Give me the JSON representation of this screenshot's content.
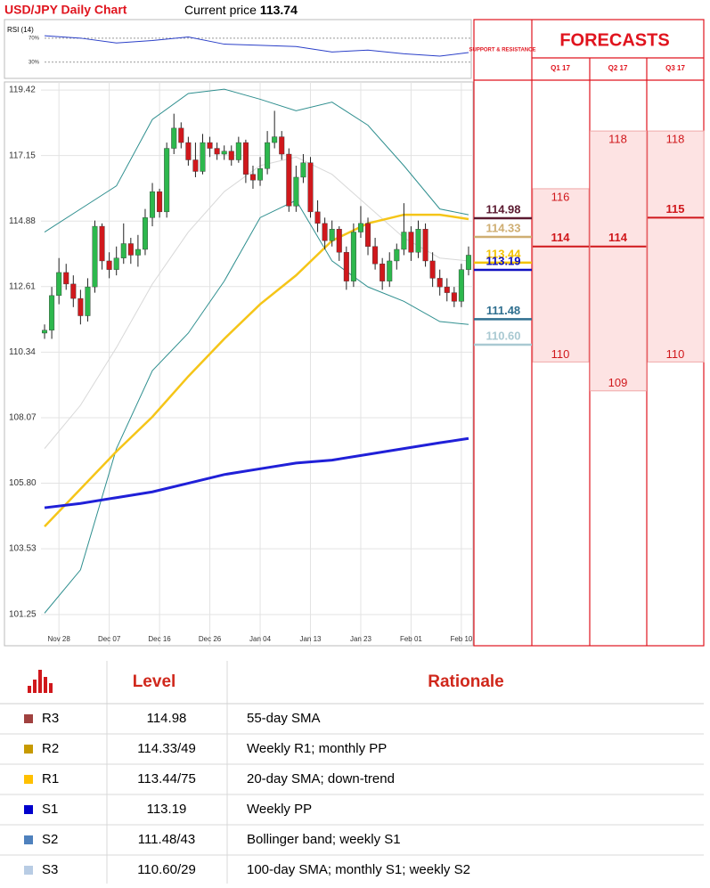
{
  "header": {
    "title": "USD/JPY Daily Chart",
    "current_price_label": "Current price",
    "current_price": 113.74
  },
  "chart_data": [
    {
      "type": "candlestick",
      "categories": [
        null,
        null,
        "Nov 28",
        null,
        null,
        null,
        null,
        null,
        null,
        "Dec 07",
        null,
        null,
        null,
        null,
        null,
        null,
        "Dec 16",
        null,
        null,
        null,
        null,
        null,
        null,
        "Dec 26",
        null,
        null,
        null,
        null,
        null,
        null,
        "Jan 04",
        null,
        null,
        null,
        null,
        null,
        null,
        "Jan 13",
        null,
        null,
        null,
        null,
        null,
        null,
        "Jan 23",
        null,
        null,
        null,
        null,
        null,
        null,
        "Feb 01",
        null,
        null,
        null,
        null,
        null,
        null,
        "Feb 10",
        null
      ],
      "open": [
        111.0,
        111.1,
        112.3,
        113.1,
        112.7,
        112.2,
        111.6,
        112.6,
        114.7,
        113.5,
        113.2,
        113.6,
        114.1,
        113.7,
        113.9,
        115.0,
        115.9,
        115.2,
        117.4,
        118.1,
        117.6,
        117.0,
        116.6,
        117.6,
        117.4,
        117.2,
        117.3,
        117.0,
        117.6,
        116.5,
        116.3,
        116.7,
        117.6,
        117.8,
        117.2,
        115.4,
        116.4,
        116.9,
        115.2,
        114.8,
        114.2,
        114.6,
        113.8,
        112.8,
        114.5,
        114.8,
        114.0,
        113.4,
        112.8,
        113.5,
        113.9,
        114.5,
        113.8,
        114.6,
        113.5,
        112.9,
        112.6,
        112.4,
        112.1,
        113.2
      ],
      "high": [
        111.3,
        112.6,
        113.6,
        113.4,
        113.0,
        112.5,
        112.9,
        114.9,
        114.8,
        113.8,
        114.0,
        114.8,
        114.3,
        114.4,
        115.3,
        116.2,
        116.0,
        117.6,
        118.6,
        118.3,
        117.8,
        117.6,
        117.9,
        117.8,
        117.6,
        117.5,
        117.5,
        117.8,
        117.7,
        116.8,
        117.1,
        118.0,
        118.7,
        118.0,
        117.4,
        116.8,
        117.2,
        117.1,
        115.6,
        115.0,
        114.9,
        114.7,
        114.0,
        114.8,
        115.4,
        115.0,
        114.3,
        113.6,
        113.8,
        114.1,
        115.5,
        114.7,
        114.9,
        114.8,
        113.8,
        113.2,
        112.9,
        112.6,
        113.4,
        114.0
      ],
      "low": [
        110.8,
        110.8,
        112.0,
        112.5,
        111.9,
        111.3,
        111.4,
        112.4,
        113.2,
        112.9,
        113.0,
        113.4,
        113.4,
        113.3,
        113.7,
        114.7,
        115.0,
        115.0,
        117.2,
        117.4,
        116.8,
        116.4,
        116.5,
        117.1,
        117.0,
        117.0,
        116.8,
        116.9,
        116.2,
        116.0,
        116.1,
        116.5,
        117.4,
        117.0,
        115.2,
        115.2,
        116.2,
        115.0,
        114.5,
        113.9,
        114.0,
        113.5,
        112.5,
        112.6,
        114.3,
        113.7,
        113.2,
        112.5,
        112.6,
        113.2,
        113.7,
        113.5,
        113.6,
        113.3,
        112.6,
        112.3,
        112.1,
        111.9,
        111.9,
        113.0
      ],
      "close": [
        111.1,
        112.3,
        113.1,
        112.7,
        112.2,
        111.6,
        112.6,
        114.7,
        113.5,
        113.2,
        113.6,
        114.1,
        113.7,
        113.9,
        115.0,
        115.9,
        115.2,
        117.4,
        118.1,
        117.6,
        117.0,
        116.6,
        117.6,
        117.4,
        117.2,
        117.3,
        117.0,
        117.6,
        116.5,
        116.3,
        116.7,
        117.6,
        117.8,
        117.2,
        115.4,
        116.4,
        116.9,
        115.2,
        114.8,
        114.2,
        114.6,
        113.8,
        112.8,
        114.5,
        114.8,
        114.0,
        113.4,
        112.8,
        113.5,
        113.9,
        114.5,
        113.8,
        114.6,
        113.5,
        112.9,
        112.6,
        112.4,
        112.1,
        113.2,
        113.7
      ],
      "up_color": "#2db84d",
      "down_color": "#d0181c",
      "lines": [
        {
          "color": "#2f8f8f",
          "width": 1,
          "x": [
            0,
            5,
            10,
            15,
            20,
            25,
            30,
            35,
            40,
            45,
            50,
            55,
            59
          ],
          "values": [
            114.5,
            115.3,
            116.1,
            118.4,
            119.3,
            119.45,
            119.1,
            118.7,
            119.0,
            118.2,
            116.8,
            115.3,
            115.1
          ]
        },
        {
          "color": "#2f8f8f",
          "width": 1,
          "x": [
            0,
            5,
            10,
            15,
            20,
            25,
            30,
            35,
            40,
            45,
            50,
            55,
            59
          ],
          "values": [
            101.3,
            102.8,
            107.0,
            109.7,
            111.0,
            112.8,
            115.0,
            115.6,
            113.5,
            112.6,
            112.1,
            111.4,
            111.3
          ]
        },
        {
          "color": "#d8d8d8",
          "width": 1,
          "x": [
            0,
            5,
            10,
            15,
            20,
            25,
            30,
            35,
            40,
            45,
            50,
            55,
            59
          ],
          "values": [
            107.0,
            108.5,
            110.5,
            112.7,
            114.5,
            115.9,
            116.8,
            117.1,
            116.5,
            115.4,
            114.3,
            113.6,
            113.5
          ]
        },
        {
          "color": "#f5c518",
          "width": 2.5,
          "x": [
            0,
            5,
            10,
            15,
            20,
            25,
            30,
            35,
            40,
            45,
            50,
            55,
            59
          ],
          "values": [
            104.3,
            105.6,
            106.9,
            108.1,
            109.5,
            110.8,
            112.0,
            113.0,
            114.2,
            114.8,
            115.1,
            115.1,
            114.95
          ]
        },
        {
          "color": "#2020d8",
          "width": 3,
          "x": [
            0,
            5,
            10,
            15,
            20,
            25,
            30,
            35,
            40,
            45,
            50,
            55,
            59
          ],
          "values": [
            104.95,
            105.1,
            105.3,
            105.5,
            105.8,
            106.1,
            106.3,
            106.5,
            106.6,
            106.8,
            107.0,
            107.2,
            107.35
          ]
        }
      ],
      "ylim": [
        100.17,
        119.7
      ],
      "yticks": [
        119.42,
        117.15,
        114.88,
        112.61,
        110.34,
        108.07,
        {
          "value": 105.8,
          "label": "105.80"
        },
        103.53,
        101.25
      ],
      "grid": true,
      "levels_title": "SUPPORT & RESISTANCE",
      "levels": [
        {
          "value": 114.98,
          "color": "#5b1a30"
        },
        {
          "value": 114.33,
          "color": "#cfae72"
        },
        {
          "value": 113.44,
          "color": "#f2c200"
        },
        {
          "value": 113.19,
          "color": "#1010c0"
        },
        {
          "value": 111.48,
          "color": "#2f6f8f"
        },
        {
          "value": 110.6,
          "label": "110.60",
          "color": "#a9c9d2"
        }
      ],
      "forecasts_title": "FORECASTS",
      "forecasts": [
        {
          "name": "Q1 17",
          "high": 116,
          "mid": 114,
          "low": 110
        },
        {
          "name": "Q2 17",
          "high": 118,
          "mid": 114,
          "low": 109
        },
        {
          "name": "Q3 17",
          "high": 118,
          "mid": 115,
          "low": 110
        }
      ]
    },
    {
      "type": "line",
      "title": "RSI (14)",
      "color": "#2a3fc8",
      "x": [
        0,
        5,
        10,
        15,
        20,
        25,
        30,
        35,
        40,
        45,
        50,
        55,
        59
      ],
      "values": [
        74,
        70,
        62,
        66,
        72,
        60,
        58,
        56,
        47,
        50,
        44,
        40,
        46
      ],
      "ylim": [
        3,
        89
      ],
      "yticks": [
        {
          "value": 70,
          "label": "70%"
        },
        {
          "value": 30,
          "label": "30%"
        }
      ]
    }
  ],
  "table": {
    "headers": [
      "Level",
      "Rationale"
    ],
    "marker_colors": [
      "#a0413f",
      "#c79a00",
      "#ffc000",
      "#0000cc",
      "#4f81bd",
      "#b8cce4"
    ],
    "rows": [
      [
        "R3",
        "114.98",
        "55-day SMA"
      ],
      [
        "R2",
        "114.33/49",
        "Weekly R1; monthly PP"
      ],
      [
        "R1",
        "113.44/75",
        "20-day SMA; down-trend"
      ],
      [
        "S1",
        "113.19",
        "Weekly PP"
      ],
      [
        "S2",
        "111.48/43",
        "Bollinger band; weekly S1"
      ],
      [
        "S3",
        "110.60/29",
        "100-day SMA; monthly S1; weekly S2"
      ]
    ]
  }
}
